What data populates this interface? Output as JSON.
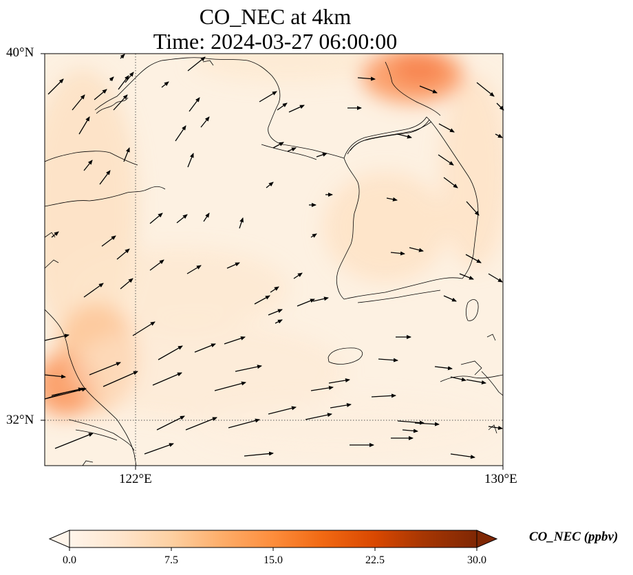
{
  "title": "CO_NEC at 4km",
  "subtitle": "Time: 2024-03-27 06:00:00",
  "lat_labels": [
    "40°N",
    "32°N"
  ],
  "lon_labels": [
    "122°E",
    "130°E"
  ],
  "colorbar": {
    "label": "CO_NEC (ppbv)",
    "ticks": [
      "0.0",
      "7.5",
      "15.0",
      "22.5",
      "30.0"
    ],
    "min": 0,
    "max": 30,
    "colormap": [
      "#fff5eb",
      "#fee6ce",
      "#fdd0a2",
      "#fdae6b",
      "#fd8d3c",
      "#f16913",
      "#d94801",
      "#a63603",
      "#7f2704"
    ],
    "extend": "both"
  },
  "map": {
    "lon_range": [
      120,
      130
    ],
    "lat_range": [
      31,
      40
    ],
    "gridlines": {
      "lon": [
        122
      ],
      "lat": [
        32
      ],
      "style": "dotted"
    },
    "land_outline_color": "#000000"
  }
}
